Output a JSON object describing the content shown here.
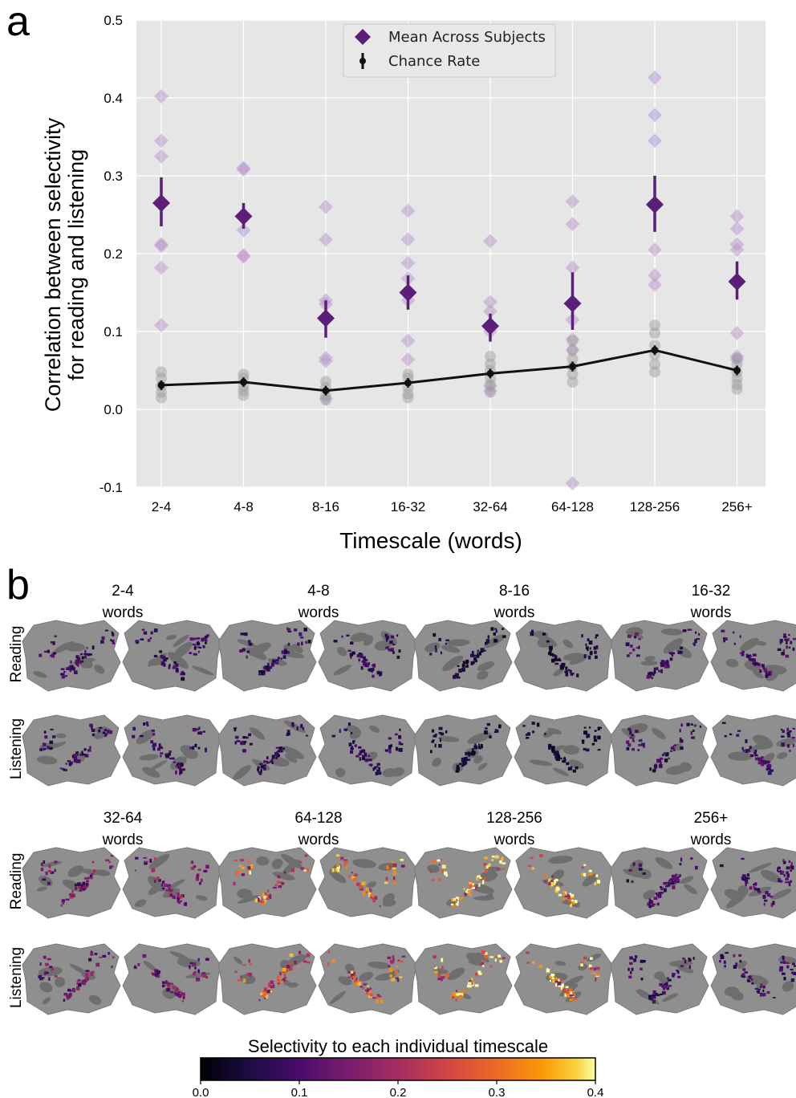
{
  "panels": {
    "a": {
      "letter": "a"
    },
    "b": {
      "letter": "b"
    }
  },
  "chart_data": {
    "type": "scatter",
    "ylabel_line1": "Correlation between selectivity",
    "ylabel_line2": "for reading and listening",
    "xlabel": "Timescale (words)",
    "ylim": [
      -0.1,
      0.5
    ],
    "yticks": [
      "-0.1",
      "0.0",
      "0.1",
      "0.2",
      "0.3",
      "0.4",
      "0.5"
    ],
    "ytick_values": [
      -0.1,
      0.0,
      0.1,
      0.2,
      0.3,
      0.4,
      0.5
    ],
    "categories": [
      "2-4",
      "4-8",
      "8-16",
      "16-32",
      "32-64",
      "64-128",
      "128-256",
      "256+"
    ],
    "grid": true,
    "legend": {
      "placement": "top-center",
      "entries": [
        "Mean Across Subjects",
        "Chance Rate"
      ]
    },
    "series": [
      {
        "name": "Mean Across Subjects",
        "color": "#5b1f7a",
        "values": [
          0.265,
          0.248,
          0.117,
          0.15,
          0.107,
          0.136,
          0.263,
          0.164
        ],
        "err_low": [
          0.235,
          0.232,
          0.092,
          0.128,
          0.087,
          0.102,
          0.228,
          0.141
        ],
        "err_high": [
          0.298,
          0.265,
          0.14,
          0.172,
          0.123,
          0.176,
          0.3,
          0.19
        ]
      },
      {
        "name": "Chance Rate",
        "color": "#111111",
        "values": [
          0.031,
          0.035,
          0.024,
          0.034,
          0.046,
          0.055,
          0.076,
          0.05
        ]
      }
    ],
    "subject_points": [
      [
        0.402,
        0.345,
        0.325,
        0.212,
        0.21,
        0.182,
        0.108
      ],
      [
        0.31,
        0.308,
        0.23,
        0.198,
        0.196
      ],
      [
        0.26,
        0.218,
        0.14,
        0.135,
        0.066,
        0.062,
        0.014
      ],
      [
        0.255,
        0.218,
        0.188,
        0.168,
        0.14,
        0.088,
        0.064
      ],
      [
        0.216,
        0.138,
        0.126,
        0.1,
        0.03,
        0.024
      ],
      [
        0.267,
        0.238,
        0.182,
        0.115,
        0.09,
        0.076,
        -0.095
      ],
      [
        0.426,
        0.378,
        0.345,
        0.205,
        0.172,
        0.16
      ],
      [
        0.248,
        0.232,
        0.212,
        0.205,
        0.165,
        0.098,
        0.068,
        0.064
      ]
    ],
    "chance_subject_points": [
      [
        0.048,
        0.04,
        0.03,
        0.022,
        0.015
      ],
      [
        0.045,
        0.04,
        0.03,
        0.024,
        0.018
      ],
      [
        0.036,
        0.028,
        0.018,
        0.012
      ],
      [
        0.045,
        0.04,
        0.028,
        0.02,
        0.015
      ],
      [
        0.068,
        0.058,
        0.05,
        0.04,
        0.032,
        0.022
      ],
      [
        0.088,
        0.076,
        0.065,
        0.055,
        0.045,
        0.035
      ],
      [
        0.108,
        0.098,
        0.082,
        0.07,
        0.058,
        0.048
      ],
      [
        0.066,
        0.058,
        0.048,
        0.04,
        0.032,
        0.026
      ]
    ]
  },
  "brain_maps": {
    "row_labels": [
      "Reading",
      "Listening",
      "Reading",
      "Listening"
    ],
    "top_timescales": [
      "2-4",
      "4-8",
      "8-16",
      "16-32"
    ],
    "bottom_timescales": [
      "32-64",
      "64-128",
      "128-256",
      "256+"
    ],
    "unit_word": "words",
    "intensity_top": [
      0.08,
      0.07,
      0.04,
      0.09
    ],
    "intensity_bottom": [
      0.14,
      0.26,
      0.33,
      0.09
    ]
  },
  "colorbar": {
    "title": "Selectivity to each individual timescale",
    "ticks": [
      "0.0",
      "0.1",
      "0.2",
      "0.3",
      "0.4"
    ],
    "range": [
      0.0,
      0.4
    ],
    "colormap": "inferno"
  }
}
